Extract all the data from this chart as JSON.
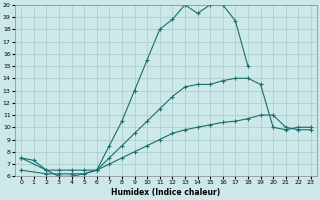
{
  "xlabel": "Humidex (Indice chaleur)",
  "bg_color": "#cce8e8",
  "grid_color": "#aacccc",
  "line_color": "#1a6e6e",
  "xlim": [
    -0.5,
    23.5
  ],
  "ylim": [
    6,
    20
  ],
  "xticks": [
    0,
    1,
    2,
    3,
    4,
    5,
    6,
    7,
    8,
    9,
    10,
    11,
    12,
    13,
    14,
    15,
    16,
    17,
    18,
    19,
    20,
    21,
    22,
    23
  ],
  "yticks": [
    6,
    7,
    8,
    9,
    10,
    11,
    12,
    13,
    14,
    15,
    16,
    17,
    18,
    19,
    20
  ],
  "curve1_x": [
    0,
    1,
    2,
    3,
    4,
    5,
    6,
    7,
    8,
    9,
    10,
    11,
    12,
    13,
    14,
    15,
    16,
    17,
    18
  ],
  "curve1_y": [
    7.5,
    7.3,
    6.5,
    6.0,
    6.0,
    6.2,
    6.5,
    8.5,
    10.5,
    13.0,
    15.5,
    18.0,
    18.8,
    20.0,
    19.3,
    20.0,
    20.0,
    18.7,
    15.0
  ],
  "curve2_x": [
    0,
    2,
    3,
    4,
    5,
    6,
    7,
    8,
    9,
    10,
    11,
    12,
    13,
    14,
    15,
    16,
    17,
    18,
    19,
    20,
    21,
    22,
    23
  ],
  "curve2_y": [
    7.5,
    6.5,
    6.5,
    6.5,
    6.5,
    6.5,
    7.5,
    8.5,
    9.5,
    10.5,
    11.5,
    12.5,
    13.3,
    13.5,
    13.5,
    13.8,
    14.0,
    14.0,
    13.5,
    10.0,
    9.8,
    10.0,
    10.0
  ],
  "curve3_x": [
    0,
    2,
    3,
    4,
    5,
    6,
    7,
    8,
    9,
    10,
    11,
    12,
    13,
    14,
    15,
    16,
    17,
    18,
    19,
    20,
    21,
    22,
    23
  ],
  "curve3_y": [
    6.5,
    6.2,
    6.2,
    6.2,
    6.2,
    6.5,
    7.0,
    7.5,
    8.0,
    8.5,
    9.0,
    9.5,
    9.8,
    10.0,
    10.2,
    10.4,
    10.5,
    10.7,
    11.0,
    11.0,
    10.0,
    9.8,
    9.8
  ]
}
